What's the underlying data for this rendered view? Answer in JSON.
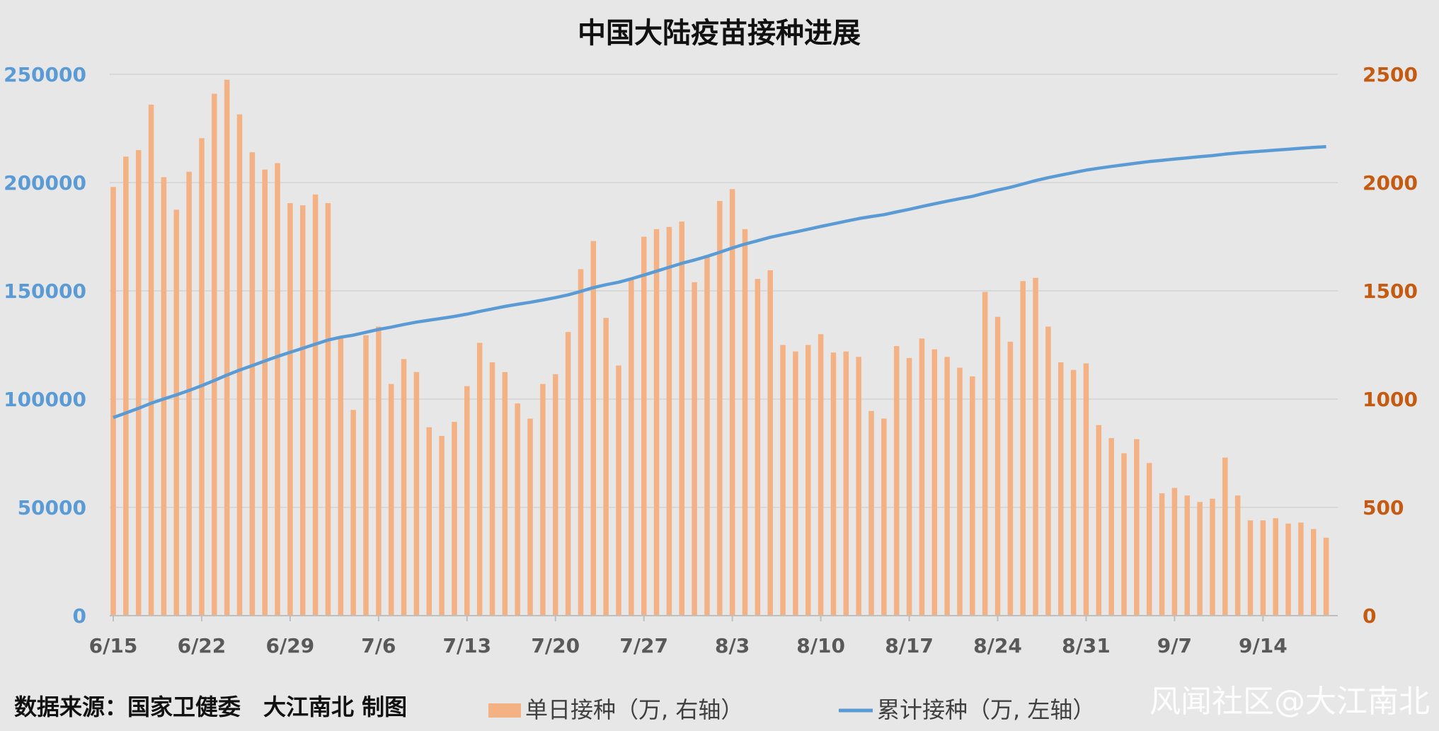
{
  "chart_data": {
    "type": "bar+line",
    "title": "中国大陆疫苗接种进展",
    "left_axis": {
      "ticks": [
        "0",
        "50000",
        "100000",
        "150000",
        "200000",
        "250000"
      ],
      "min": 0,
      "max": 250000,
      "color": "#5b9bd5"
    },
    "right_axis": {
      "ticks": [
        "0",
        "500",
        "1000",
        "1500",
        "2000",
        "2500"
      ],
      "min": 0,
      "max": 2500,
      "color": "#c55a11"
    },
    "x_tick_labels": [
      "6/15",
      "6/22",
      "6/29",
      "7/6",
      "7/13",
      "7/20",
      "7/27",
      "8/3",
      "8/10",
      "8/17",
      "8/24",
      "8/31",
      "9/7",
      "9/14"
    ],
    "start_date": "6/15",
    "series": [
      {
        "name": "单日接种（万, 右轴）",
        "type": "bar",
        "axis": "right",
        "color": "#f4b183",
        "values": [
          1980,
          2120,
          2150,
          2360,
          2025,
          1875,
          2050,
          2205,
          2410,
          2475,
          2315,
          2140,
          2060,
          2090,
          1905,
          1895,
          1945,
          1905,
          1290,
          950,
          1295,
          1335,
          1070,
          1185,
          1125,
          870,
          830,
          895,
          1060,
          1260,
          1170,
          1125,
          980,
          910,
          1070,
          1115,
          1310,
          1600,
          1730,
          1375,
          1155,
          1560,
          1750,
          1785,
          1795,
          1820,
          1540,
          1665,
          1915,
          1970,
          1785,
          1555,
          1595,
          1250,
          1220,
          1250,
          1300,
          1215,
          1220,
          1195,
          945,
          910,
          1245,
          1190,
          1280,
          1230,
          1195,
          1145,
          1105,
          1495,
          1380,
          1265,
          1545,
          1560,
          1335,
          1170,
          1135,
          1165,
          880,
          820,
          750,
          815,
          705,
          565,
          590,
          555,
          525,
          540,
          730,
          555,
          440,
          440,
          450,
          425,
          430,
          400,
          360
        ]
      },
      {
        "name": "累计接种（万, 左轴）",
        "type": "line",
        "axis": "left",
        "color": "#5b9bd5",
        "values": [
          91500,
          93600,
          95750,
          98100,
          100100,
          101950,
          104000,
          106200,
          108600,
          111100,
          113400,
          115500,
          117600,
          119700,
          121600,
          123500,
          125400,
          127300,
          128600,
          129550,
          130850,
          132200,
          133250,
          134450,
          135550,
          136450,
          137300,
          138200,
          139250,
          140500,
          141650,
          142800,
          143800,
          144700,
          145750,
          146850,
          148150,
          149750,
          151500,
          152850,
          154000,
          155550,
          157300,
          159100,
          160900,
          162700,
          164250,
          165900,
          167800,
          169800,
          171600,
          173150,
          174750,
          176000,
          177200,
          178450,
          179750,
          180950,
          182150,
          183350,
          184300,
          185200,
          186450,
          187650,
          188950,
          190200,
          191400,
          192550,
          193650,
          195150,
          196550,
          197800,
          199350,
          200900,
          202250,
          203450,
          204600,
          205750,
          206650,
          207450,
          208200,
          209000,
          209700,
          210250,
          210850,
          211400,
          211950,
          212450,
          213150,
          213700,
          214150,
          214550,
          215000,
          215400,
          215850,
          216250,
          216600
        ]
      }
    ]
  },
  "footer": {
    "source": "数据来源：国家卫健委　大江南北 制图",
    "watermark": "风闻社区@大江南北"
  }
}
